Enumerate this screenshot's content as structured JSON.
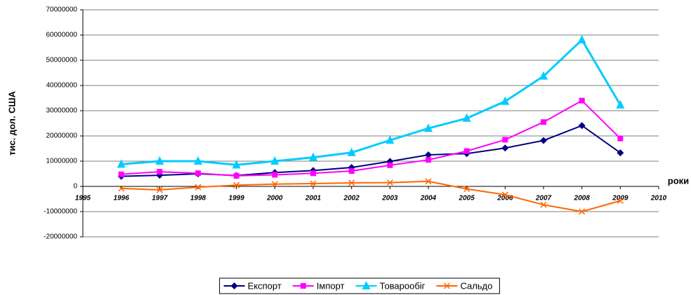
{
  "chart_data": {
    "type": "line",
    "x_label": "роки",
    "y_label": "тис. дол. США",
    "x": [
      1996,
      1997,
      1998,
      1999,
      2000,
      2001,
      2002,
      2003,
      2004,
      2005,
      2006,
      2007,
      2008,
      2009
    ],
    "series": [
      {
        "name": "Експорт",
        "color": "#000080",
        "marker": "diamond",
        "values": [
          4000000,
          4400000,
          5000000,
          4300000,
          5500000,
          6300000,
          7500000,
          9900000,
          12500000,
          13000000,
          15200000,
          18200000,
          24100000,
          13300000
        ]
      },
      {
        "name": "Імпорт",
        "color": "#ff00ff",
        "marker": "square",
        "values": [
          4800000,
          5800000,
          5200000,
          4200000,
          4600000,
          5200000,
          6100000,
          8400000,
          10500000,
          14000000,
          18500000,
          25500000,
          34000000,
          19000000
        ]
      },
      {
        "name": "Товарообіг",
        "color": "#00ccff",
        "marker": "triangle",
        "values": [
          8800000,
          10000000,
          10000000,
          8500000,
          10000000,
          11500000,
          13400000,
          18300000,
          23000000,
          27000000,
          33700000,
          43700000,
          58100000,
          32300000
        ]
      },
      {
        "name": "Сальдо",
        "color": "#ff6600",
        "marker": "x",
        "values": [
          -800000,
          -1400000,
          -300000,
          500000,
          900000,
          1100000,
          1400000,
          1500000,
          2000000,
          -1000000,
          -3300000,
          -7300000,
          -10000000,
          -5700000
        ]
      }
    ],
    "xlim": [
      1995,
      2010
    ],
    "xticks": [
      1995,
      1996,
      1997,
      1998,
      1999,
      2000,
      2001,
      2002,
      2003,
      2004,
      2005,
      2006,
      2007,
      2008,
      2009,
      2010
    ],
    "ylim": [
      -20000000,
      70000000
    ],
    "yticks": [
      -20000000,
      -10000000,
      0,
      10000000,
      20000000,
      30000000,
      40000000,
      50000000,
      60000000,
      70000000
    ],
    "grid": true,
    "legend": "bottom"
  }
}
